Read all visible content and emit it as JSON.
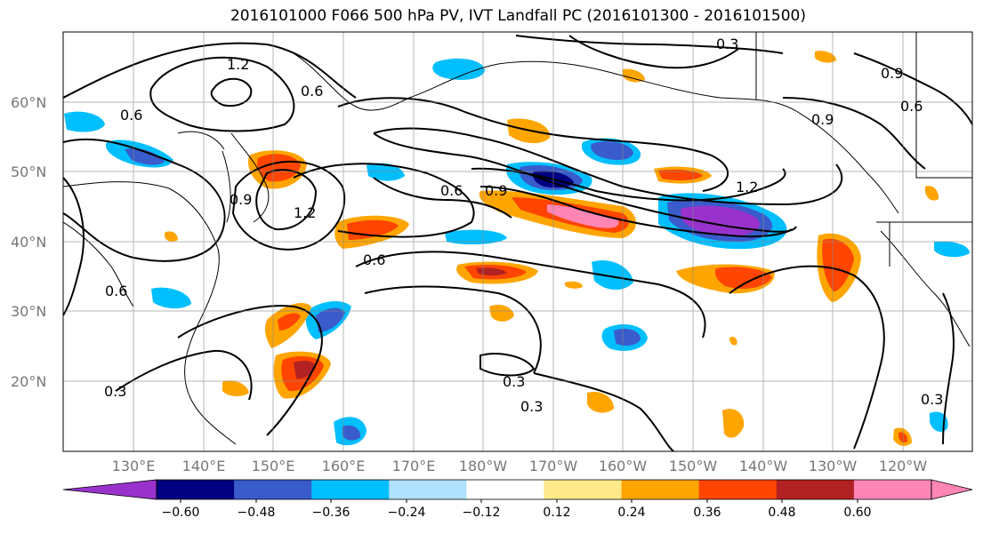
{
  "title": "2016101000 F066 500 hPa PV, IVT Landfall PC (2016101300 - 2016101500)",
  "lat_labels": [
    "60°N",
    "50°N",
    "40°N",
    "30°N",
    "20°N"
  ],
  "lon_labels": [
    "130°E",
    "140°E",
    "150°E",
    "160°E",
    "170°E",
    "180°W",
    "170°W",
    "160°W",
    "150°W",
    "140°W",
    "130°W",
    "120°W"
  ],
  "contour_labels": [
    "1.2",
    "0.6",
    "0.6",
    "0.9",
    "0.3",
    "1.2",
    "0.9",
    "0.6",
    "1.2",
    "0.6",
    "0.9",
    "0.6",
    "0.3",
    "0.3",
    "0.3",
    "0.3",
    "0.9",
    "0.6"
  ],
  "colorbar": {
    "ticks": [
      "−0.60",
      "−0.48",
      "−0.36",
      "−0.24",
      "−0.12",
      "0.12",
      "0.24",
      "0.36",
      "0.48",
      "0.60"
    ],
    "colors": [
      "#9932CC",
      "#000080",
      "#3A5BCB",
      "#00BFFF",
      "#B0E2FF",
      "#FFFFFF",
      "#FFE98A",
      "#FFA500",
      "#FF4500",
      "#B22222",
      "#FF85B5",
      "#FF85B5"
    ]
  }
}
